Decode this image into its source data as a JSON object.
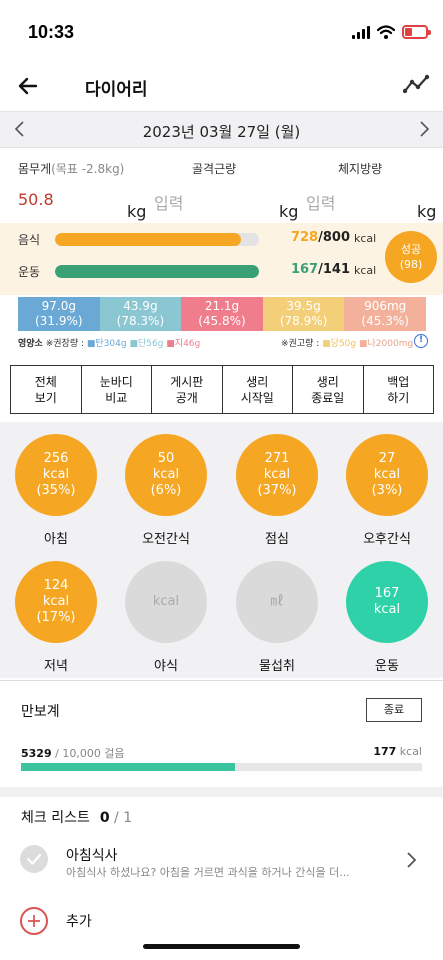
{
  "status": {
    "time": "10:33"
  },
  "nav": {
    "title": "다이어리",
    "back_icon": "arrow-left-icon",
    "trend_icon": "trend-line-icon"
  },
  "date": {
    "label": "2023년 03월 27일 (월)"
  },
  "body_metrics": {
    "weight": {
      "label": "몸무게",
      "sub": "(목표 -2.8kg)",
      "value": "50.8",
      "unit": "kg"
    },
    "muscle": {
      "label": "골격근량",
      "placeholder": "입력",
      "unit": "kg"
    },
    "fat": {
      "label": "체지방량",
      "placeholder": "입력",
      "unit": "kg"
    }
  },
  "calories": {
    "food": {
      "label": "음식",
      "current": "728",
      "target": "/800",
      "unit": "kcal",
      "progress": 0.91,
      "color": "#f5a623"
    },
    "exercise": {
      "label": "운동",
      "current": "167",
      "target": "/141",
      "unit": "kcal",
      "progress": 1.0,
      "color": "#3aa076"
    },
    "badge": {
      "line1": "성공",
      "line2": "(98)"
    }
  },
  "nutrients": [
    {
      "value": "97.0g",
      "pct": "(31.9%)",
      "color": "#6aa9d6"
    },
    {
      "value": "43.9g",
      "pct": "(78.3%)",
      "color": "#8bc7d2"
    },
    {
      "value": "21.1g",
      "pct": "(45.8%)",
      "color": "#ef7d8c"
    },
    {
      "value": "39.5g",
      "pct": "(78.9%)",
      "color": "#f4cf7a"
    },
    {
      "value": "906mg",
      "pct": "(45.3%)",
      "color": "#f3b19b"
    }
  ],
  "nutrient_legend": {
    "left_label": "영양소",
    "left_note": "※권장량 :",
    "carb": "탄304g",
    "protein": "단56g",
    "fat": "지46g",
    "right_note": "※권고량 :",
    "sugar": "당50g",
    "sodium": "나2000mg",
    "info": "!"
  },
  "menu": [
    {
      "l1": "전체",
      "l2": "보기"
    },
    {
      "l1": "눈바디",
      "l2": "비교"
    },
    {
      "l1": "게시판",
      "l2": "공개"
    },
    {
      "l1": "생리",
      "l2": "시작일"
    },
    {
      "l1": "생리",
      "l2": "종료일"
    },
    {
      "l1": "백업",
      "l2": "하기"
    }
  ],
  "meals": [
    {
      "name": "아침",
      "kcal": "256",
      "unit": "kcal",
      "pct": "(35%)",
      "color": "#f5a623"
    },
    {
      "name": "오전간식",
      "kcal": "50",
      "unit": "kcal",
      "pct": "(6%)",
      "color": "#f5a623"
    },
    {
      "name": "점심",
      "kcal": "271",
      "unit": "kcal",
      "pct": "(37%)",
      "color": "#f5a623"
    },
    {
      "name": "오후간식",
      "kcal": "27",
      "unit": "kcal",
      "pct": "(3%)",
      "color": "#f5a623"
    },
    {
      "name": "저녁",
      "kcal": "124",
      "unit": "kcal",
      "pct": "(17%)",
      "color": "#f5a623"
    },
    {
      "name": "야식",
      "kcal": "",
      "unit": "kcal",
      "pct": "",
      "color": "#dadada"
    },
    {
      "name": "물섭취",
      "kcal": "",
      "unit": "㎖",
      "pct": "",
      "color": "#dadada"
    },
    {
      "name": "운동",
      "kcal": "167",
      "unit": "kcal",
      "pct": "",
      "color": "#2fd1a8"
    }
  ],
  "pedometer": {
    "title": "만보계",
    "end_label": "종료",
    "steps": "5329",
    "goal": " / 10,000 걸음",
    "kcal": "177",
    "kcal_unit": " kcal",
    "progress": 0.533
  },
  "checklist": {
    "title": "체크 리스트",
    "done": "0",
    "total": " / 1",
    "item_name": "아침식사",
    "item_desc": "아침식사 하셨나요? 아침을 거르면 과식을 하거나 간식을 더...",
    "add_label": "추가"
  }
}
